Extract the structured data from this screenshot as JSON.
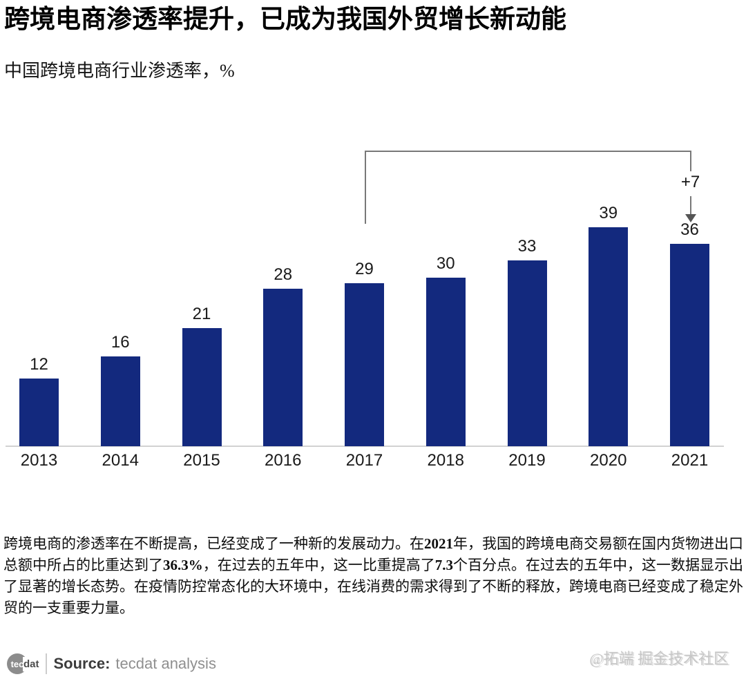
{
  "header": {
    "title": "跨境电商渗透率提升，已成为我国外贸增长新动能",
    "subtitle": "中国跨境电商行业渗透率，%"
  },
  "chart_data": {
    "type": "bar",
    "title": "中国跨境电商行业渗透率，%",
    "unit": "%",
    "categories": [
      "2013",
      "2014",
      "2015",
      "2016",
      "2017",
      "2018",
      "2019",
      "2020",
      "2021"
    ],
    "values": [
      12,
      16,
      21,
      28,
      29,
      30,
      33,
      39,
      36
    ],
    "ylim": [
      0,
      45
    ],
    "grid": false,
    "legend": "none",
    "value_labels": true,
    "bar_color": "#13297E",
    "annotation": {
      "from_category": "2017",
      "to_category": "2021",
      "label": "+7"
    }
  },
  "body": {
    "parts": [
      {
        "text": "跨境电商的渗透率在不断提高，已经变成了一种新的发展动力。在",
        "bold": false
      },
      {
        "text": "2021",
        "bold": true
      },
      {
        "text": "年，我国的跨境电商交易额在国内货物进出口总额中所占的比重达到了",
        "bold": false
      },
      {
        "text": "36.3%",
        "bold": true
      },
      {
        "text": "，在过去的五年中，这一比重提高了",
        "bold": false
      },
      {
        "text": "7.3",
        "bold": true
      },
      {
        "text": "个百分点。在过去的五年中，这一数据显示出了显著的增长态势。在疫情防控常态化的大环境中，在线消费的需求得到了不断的释放，跨境电商已经变成了稳定外贸的一支重要力量。",
        "bold": false
      }
    ]
  },
  "footer": {
    "logo_circle_text": "tec",
    "logo_suffix_text": "dat",
    "source_label": "Source:",
    "source_value": "tecdat analysis"
  },
  "watermark": "@拓端 掘金技术社区"
}
